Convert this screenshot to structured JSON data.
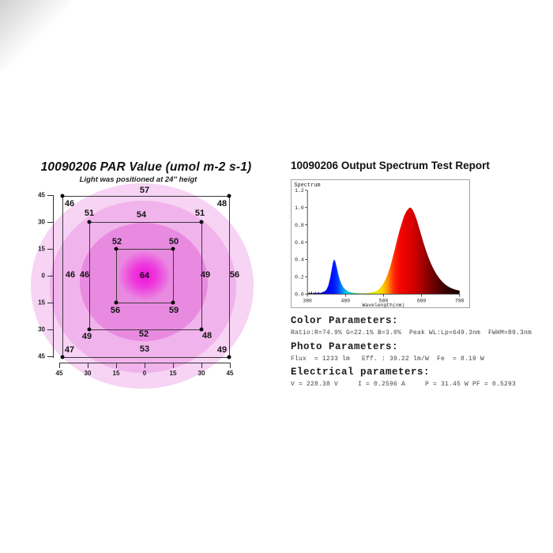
{
  "spectrum_panel": {
    "title": "10090206 Output Spectrum Test Report",
    "sections": [
      {
        "heading": "Color Parameters:",
        "line": "Ratio:R=74.9% G=22.1% B=3.0%  Peak WL:Lp=649.3nm  FWHM=89.3nm"
      },
      {
        "heading": "Photo Parameters:",
        "line": "Flux  = 1233 lm   Eff. : 39.22 lm/W  Fe  = 8.19 W"
      },
      {
        "heading": "Electrical parameters:",
        "line": "V = 228.38 V     I = 0.2596 A     P = 31.45 W PF = 0.5293"
      }
    ]
  },
  "chart_data": [
    {
      "type": "table",
      "title": "10090206 PAR Value (umol m-2 s-1)",
      "subtitle": "Light was positioned at 24″ heigt",
      "units": "umol m-2 s-1",
      "y_ticks": [
        45,
        30,
        15,
        0,
        15,
        30,
        45
      ],
      "x_ticks": [
        45,
        30,
        15,
        0,
        15,
        30,
        45
      ],
      "rings": {
        "outer_45": {
          "top_left": 46,
          "top_center": 57,
          "top_right": 48,
          "mid_left": 46,
          "mid_right": 56,
          "bottom_left": 47,
          "bottom_center": 53,
          "bottom_right": 49
        },
        "middle_30": {
          "top_left": 51,
          "top_center": 54,
          "top_right": 51,
          "mid_left": 46,
          "mid_right": 49,
          "bottom_left": 49,
          "bottom_center": 52,
          "bottom_right": 48
        },
        "inner_15": {
          "top_left": 52,
          "top_right": 50,
          "bottom_left": 56,
          "bottom_right": 59
        },
        "center": 64
      },
      "ring_colors": [
        "#f7d3f4",
        "#f1b3eb",
        "#e98ae1",
        "#ef10dc"
      ]
    },
    {
      "type": "area",
      "label": "Spectrum",
      "xlabel": "Wavelength(nm)",
      "xlim": [
        380,
        780
      ],
      "ylim": [
        0,
        1.2
      ],
      "x_ticks": [
        380,
        480,
        580,
        680,
        780
      ],
      "y_ticks": [
        "0.0",
        "0.2",
        "0.4",
        "0.6",
        "0.8",
        "1.0",
        "1.2"
      ],
      "peaks": {
        "blue_nm": 450,
        "blue_rel": 0.4,
        "red_nm": 649.3,
        "red_rel": 1.0,
        "fwhm_nm": 89.3
      },
      "points": [
        [
          380,
          0.004
        ],
        [
          383,
          0.006
        ],
        [
          385,
          0.028
        ],
        [
          386,
          0.008
        ],
        [
          389,
          0.012
        ],
        [
          391,
          0.034
        ],
        [
          392,
          0.01
        ],
        [
          395,
          0.008
        ],
        [
          398,
          0.02
        ],
        [
          399,
          0.007
        ],
        [
          402,
          0.028
        ],
        [
          403,
          0.009
        ],
        [
          407,
          0.014
        ],
        [
          410,
          0.022
        ],
        [
          412,
          0.01
        ],
        [
          416,
          0.016
        ],
        [
          420,
          0.022
        ],
        [
          425,
          0.03
        ],
        [
          430,
          0.05
        ],
        [
          435,
          0.1
        ],
        [
          440,
          0.19
        ],
        [
          444,
          0.29
        ],
        [
          447,
          0.36
        ],
        [
          450,
          0.4
        ],
        [
          453,
          0.38
        ],
        [
          457,
          0.31
        ],
        [
          461,
          0.23
        ],
        [
          465,
          0.165
        ],
        [
          470,
          0.11
        ],
        [
          475,
          0.075
        ],
        [
          480,
          0.052
        ],
        [
          486,
          0.033
        ],
        [
          492,
          0.022
        ],
        [
          500,
          0.014
        ],
        [
          510,
          0.01
        ],
        [
          520,
          0.008
        ],
        [
          530,
          0.009
        ],
        [
          540,
          0.012
        ],
        [
          548,
          0.016
        ],
        [
          556,
          0.025
        ],
        [
          562,
          0.035
        ],
        [
          568,
          0.055
        ],
        [
          574,
          0.085
        ],
        [
          580,
          0.125
        ],
        [
          586,
          0.175
        ],
        [
          592,
          0.24
        ],
        [
          598,
          0.32
        ],
        [
          604,
          0.42
        ],
        [
          610,
          0.52
        ],
        [
          616,
          0.63
        ],
        [
          622,
          0.73
        ],
        [
          628,
          0.82
        ],
        [
          634,
          0.9
        ],
        [
          640,
          0.955
        ],
        [
          645,
          0.985
        ],
        [
          649,
          1.0
        ],
        [
          653,
          0.995
        ],
        [
          657,
          0.97
        ],
        [
          662,
          0.925
        ],
        [
          668,
          0.85
        ],
        [
          674,
          0.76
        ],
        [
          680,
          0.67
        ],
        [
          686,
          0.58
        ],
        [
          692,
          0.5
        ],
        [
          698,
          0.425
        ],
        [
          705,
          0.35
        ],
        [
          712,
          0.285
        ],
        [
          720,
          0.225
        ],
        [
          728,
          0.175
        ],
        [
          736,
          0.135
        ],
        [
          744,
          0.105
        ],
        [
          752,
          0.082
        ],
        [
          760,
          0.065
        ],
        [
          768,
          0.052
        ],
        [
          775,
          0.044
        ],
        [
          780,
          0.04
        ]
      ],
      "gradient_stops": [
        [
          380,
          "#000018"
        ],
        [
          415,
          "#0000b0"
        ],
        [
          435,
          "#0008f0"
        ],
        [
          450,
          "#0018ff"
        ],
        [
          460,
          "#0040ff"
        ],
        [
          472,
          "#0090ff"
        ],
        [
          483,
          "#00c8f0"
        ],
        [
          492,
          "#00ddc0"
        ],
        [
          502,
          "#22cc77"
        ],
        [
          515,
          "#55cc22"
        ],
        [
          530,
          "#99d500"
        ],
        [
          548,
          "#ccdd00"
        ],
        [
          563,
          "#eeee00"
        ],
        [
          578,
          "#ffd000"
        ],
        [
          590,
          "#ff9900"
        ],
        [
          600,
          "#ff5500"
        ],
        [
          610,
          "#ff2200"
        ],
        [
          622,
          "#f50800"
        ],
        [
          640,
          "#e60000"
        ],
        [
          660,
          "#d40000"
        ],
        [
          678,
          "#b00000"
        ],
        [
          700,
          "#800000"
        ],
        [
          725,
          "#550000"
        ],
        [
          750,
          "#300000"
        ],
        [
          780,
          "#140000"
        ]
      ]
    }
  ]
}
